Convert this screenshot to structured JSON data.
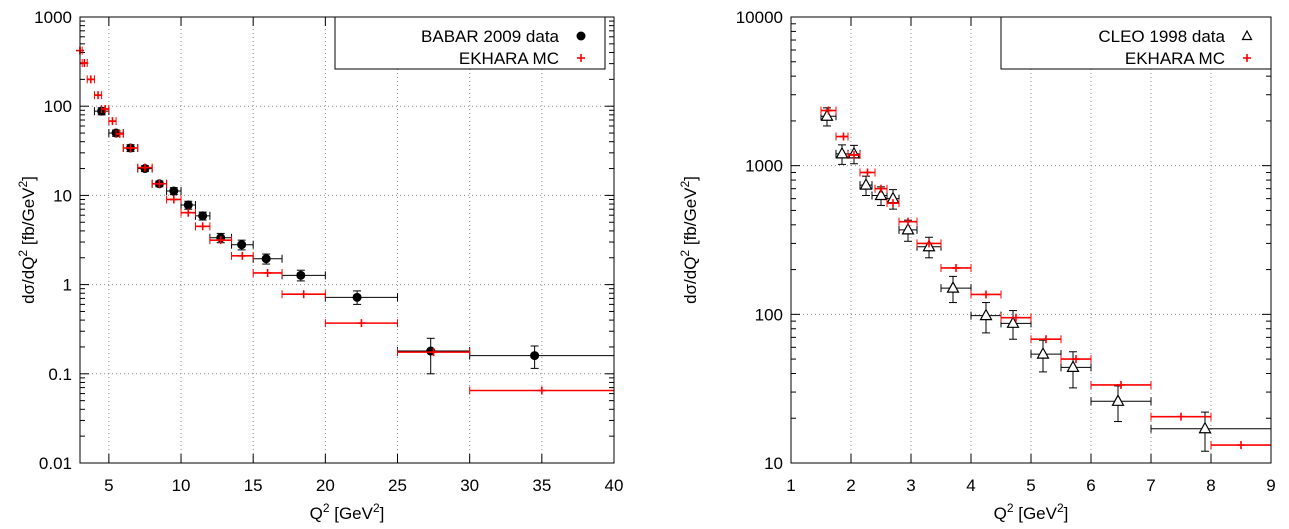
{
  "chart_data": [
    {
      "type": "scatter",
      "ylog": true,
      "xlim": [
        3,
        40
      ],
      "ylim": [
        0.01,
        1000
      ],
      "xticks": [
        5,
        10,
        15,
        20,
        25,
        30,
        35,
        40
      ],
      "yticks": [
        0.01,
        0.1,
        1,
        10,
        100,
        1000
      ],
      "ytick_labels": [
        "0.01",
        "0.1",
        "1",
        "10",
        "100",
        "1000"
      ],
      "xlabel": "Q",
      "xlabel_sup": "2",
      "xlabel_unit": "[GeV",
      "xlabel_unit_sup": "2",
      "xlabel_end": "]",
      "ylabel": "dσ/dQ",
      "ylabel_sup": "2",
      "ylabel_unit": "[fb/GeV",
      "ylabel_unit_sup": "2",
      "ylabel_end": "]",
      "grid": true,
      "legend_position": "top-right",
      "series": [
        {
          "name": "BABAR 2009 data",
          "marker": "filled-circle",
          "color": "#000000",
          "points": [
            {
              "x": 4.5,
              "y": 88,
              "xlo": 4.0,
              "xhi": 5.0,
              "ylo": 80,
              "yhi": 96
            },
            {
              "x": 5.5,
              "y": 50,
              "xlo": 5.0,
              "xhi": 6.0,
              "ylo": 46,
              "yhi": 54
            },
            {
              "x": 6.5,
              "y": 34,
              "xlo": 6.0,
              "xhi": 7.0,
              "ylo": 31,
              "yhi": 37
            },
            {
              "x": 7.5,
              "y": 20,
              "xlo": 7.0,
              "xhi": 8.0,
              "ylo": 18.5,
              "yhi": 21.5
            },
            {
              "x": 8.5,
              "y": 13.5,
              "xlo": 8.0,
              "xhi": 9.0,
              "ylo": 12.5,
              "yhi": 14.5
            },
            {
              "x": 9.5,
              "y": 11.2,
              "xlo": 9.0,
              "xhi": 10.0,
              "ylo": 10.2,
              "yhi": 12.2
            },
            {
              "x": 10.5,
              "y": 7.8,
              "xlo": 10.0,
              "xhi": 11.0,
              "ylo": 7.0,
              "yhi": 8.6
            },
            {
              "x": 11.5,
              "y": 5.9,
              "xlo": 11.0,
              "xhi": 12.0,
              "ylo": 5.3,
              "yhi": 6.5
            },
            {
              "x": 12.75,
              "y": 3.35,
              "xlo": 12.0,
              "xhi": 13.5,
              "ylo": 2.95,
              "yhi": 3.75
            },
            {
              "x": 14.2,
              "y": 2.8,
              "xlo": 13.5,
              "xhi": 15.0,
              "ylo": 2.45,
              "yhi": 3.15
            },
            {
              "x": 15.9,
              "y": 1.95,
              "xlo": 15.0,
              "xhi": 17.0,
              "ylo": 1.7,
              "yhi": 2.2
            },
            {
              "x": 18.3,
              "y": 1.27,
              "xlo": 17.0,
              "xhi": 20.0,
              "ylo": 1.1,
              "yhi": 1.45
            },
            {
              "x": 22.2,
              "y": 0.72,
              "xlo": 20.0,
              "xhi": 25.0,
              "ylo": 0.6,
              "yhi": 0.85
            },
            {
              "x": 27.3,
              "y": 0.18,
              "xlo": 25.0,
              "xhi": 30.0,
              "ylo": 0.1,
              "yhi": 0.25
            },
            {
              "x": 34.5,
              "y": 0.16,
              "xlo": 30.0,
              "xhi": 40.0,
              "ylo": 0.115,
              "yhi": 0.205
            }
          ]
        },
        {
          "name": "EKHARA MC",
          "marker": "plus",
          "color": "#ff0000",
          "points": [
            {
              "x": 3.0,
              "y": 420,
              "xlo": 2.9,
              "xhi": 3.15
            },
            {
              "x": 3.3,
              "y": 305,
              "xlo": 3.15,
              "xhi": 3.5
            },
            {
              "x": 3.75,
              "y": 200,
              "xlo": 3.5,
              "xhi": 4.0
            },
            {
              "x": 4.25,
              "y": 133,
              "xlo": 4.0,
              "xhi": 4.5
            },
            {
              "x": 4.75,
              "y": 93,
              "xlo": 4.5,
              "xhi": 5.0
            },
            {
              "x": 5.25,
              "y": 68,
              "xlo": 5.0,
              "xhi": 5.5
            },
            {
              "x": 5.75,
              "y": 49,
              "xlo": 5.5,
              "xhi": 6.0
            },
            {
              "x": 6.5,
              "y": 34,
              "xlo": 6.0,
              "xhi": 7.0
            },
            {
              "x": 7.5,
              "y": 20.5,
              "xlo": 7.0,
              "xhi": 8.0
            },
            {
              "x": 8.5,
              "y": 13.5,
              "xlo": 8.0,
              "xhi": 9.0
            },
            {
              "x": 9.5,
              "y": 9.0,
              "xlo": 9.0,
              "xhi": 10.0
            },
            {
              "x": 10.5,
              "y": 6.4,
              "xlo": 10.0,
              "xhi": 11.0
            },
            {
              "x": 11.5,
              "y": 4.5,
              "xlo": 11.0,
              "xhi": 12.0
            },
            {
              "x": 12.75,
              "y": 3.15,
              "xlo": 12.0,
              "xhi": 13.5
            },
            {
              "x": 14.25,
              "y": 2.1,
              "xlo": 13.5,
              "xhi": 15.0
            },
            {
              "x": 16.0,
              "y": 1.35,
              "xlo": 15.0,
              "xhi": 17.0
            },
            {
              "x": 18.5,
              "y": 0.78,
              "xlo": 17.0,
              "xhi": 20.0
            },
            {
              "x": 22.5,
              "y": 0.37,
              "xlo": 20.0,
              "xhi": 25.0
            },
            {
              "x": 27.5,
              "y": 0.175,
              "xlo": 25.0,
              "xhi": 30.0
            },
            {
              "x": 35.0,
              "y": 0.065,
              "xlo": 30.0,
              "xhi": 40.0
            }
          ]
        }
      ]
    },
    {
      "type": "scatter",
      "ylog": true,
      "xlim": [
        1,
        9
      ],
      "ylim": [
        10,
        10000
      ],
      "xticks": [
        1,
        2,
        3,
        4,
        5,
        6,
        7,
        8,
        9
      ],
      "yticks": [
        10,
        100,
        1000,
        10000
      ],
      "ytick_labels": [
        "10",
        "100",
        "1000",
        "10000"
      ],
      "xlabel": "Q",
      "xlabel_sup": "2",
      "xlabel_unit": "[GeV",
      "xlabel_unit_sup": "2",
      "xlabel_end": "]",
      "ylabel": "dσ/dQ",
      "ylabel_sup": "2",
      "ylabel_unit": "[fb/GeV",
      "ylabel_unit_sup": "2",
      "ylabel_end": "]",
      "grid": true,
      "legend_position": "top-right",
      "series": [
        {
          "name": "CLEO 1998 data",
          "marker": "open-triangle",
          "color": "#000000",
          "points": [
            {
              "x": 1.6,
              "y": 2150,
              "xlo": 1.5,
              "xhi": 1.75,
              "ylo": 1850,
              "yhi": 2450
            },
            {
              "x": 1.85,
              "y": 1200,
              "xlo": 1.75,
              "xhi": 1.95,
              "ylo": 1020,
              "yhi": 1380
            },
            {
              "x": 2.05,
              "y": 1200,
              "xlo": 1.95,
              "xhi": 2.15,
              "ylo": 1030,
              "yhi": 1370
            },
            {
              "x": 2.25,
              "y": 740,
              "xlo": 2.15,
              "xhi": 2.35,
              "ylo": 630,
              "yhi": 850
            },
            {
              "x": 2.5,
              "y": 630,
              "xlo": 2.35,
              "xhi": 2.6,
              "ylo": 540,
              "yhi": 720
            },
            {
              "x": 2.7,
              "y": 600,
              "xlo": 2.6,
              "xhi": 2.8,
              "ylo": 510,
              "yhi": 690
            },
            {
              "x": 2.95,
              "y": 370,
              "xlo": 2.8,
              "xhi": 3.1,
              "ylo": 310,
              "yhi": 430
            },
            {
              "x": 3.3,
              "y": 285,
              "xlo": 3.1,
              "xhi": 3.5,
              "ylo": 240,
              "yhi": 330
            },
            {
              "x": 3.7,
              "y": 150,
              "xlo": 3.5,
              "xhi": 4.0,
              "ylo": 120,
              "yhi": 180
            },
            {
              "x": 4.25,
              "y": 98,
              "xlo": 4.0,
              "xhi": 4.5,
              "ylo": 75,
              "yhi": 120
            },
            {
              "x": 4.7,
              "y": 87,
              "xlo": 4.5,
              "xhi": 5.0,
              "ylo": 68,
              "yhi": 106
            },
            {
              "x": 5.2,
              "y": 54,
              "xlo": 5.0,
              "xhi": 5.5,
              "ylo": 41,
              "yhi": 67
            },
            {
              "x": 5.7,
              "y": 44,
              "xlo": 5.5,
              "xhi": 6.0,
              "ylo": 32,
              "yhi": 56
            },
            {
              "x": 6.45,
              "y": 26,
              "xlo": 6.0,
              "xhi": 7.0,
              "ylo": 19,
              "yhi": 33
            },
            {
              "x": 7.9,
              "y": 17,
              "xlo": 7.0,
              "xhi": 9.0,
              "ylo": 12,
              "yhi": 22
            }
          ]
        },
        {
          "name": "EKHARA MC",
          "marker": "plus",
          "color": "#ff0000",
          "points": [
            {
              "x": 1.625,
              "y": 2350,
              "xlo": 1.5,
              "xhi": 1.75
            },
            {
              "x": 1.875,
              "y": 1570,
              "xlo": 1.75,
              "xhi": 1.95
            },
            {
              "x": 2.05,
              "y": 1180,
              "xlo": 1.95,
              "xhi": 2.15
            },
            {
              "x": 2.275,
              "y": 900,
              "xlo": 2.15,
              "xhi": 2.4
            },
            {
              "x": 2.5,
              "y": 700,
              "xlo": 2.4,
              "xhi": 2.6
            },
            {
              "x": 2.7,
              "y": 560,
              "xlo": 2.6,
              "xhi": 2.8
            },
            {
              "x": 2.95,
              "y": 420,
              "xlo": 2.8,
              "xhi": 3.1
            },
            {
              "x": 3.3,
              "y": 300,
              "xlo": 3.1,
              "xhi": 3.5
            },
            {
              "x": 3.75,
              "y": 205,
              "xlo": 3.5,
              "xhi": 4.0
            },
            {
              "x": 4.25,
              "y": 136,
              "xlo": 4.0,
              "xhi": 4.5
            },
            {
              "x": 4.75,
              "y": 95,
              "xlo": 4.5,
              "xhi": 5.0
            },
            {
              "x": 5.25,
              "y": 68,
              "xlo": 5.0,
              "xhi": 5.5
            },
            {
              "x": 5.75,
              "y": 50,
              "xlo": 5.5,
              "xhi": 6.0
            },
            {
              "x": 6.5,
              "y": 33.5,
              "xlo": 6.0,
              "xhi": 7.0
            },
            {
              "x": 7.5,
              "y": 20.5,
              "xlo": 7.0,
              "xhi": 8.0
            },
            {
              "x": 8.5,
              "y": 13.2,
              "xlo": 8.0,
              "xhi": 9.0
            }
          ]
        }
      ]
    }
  ]
}
